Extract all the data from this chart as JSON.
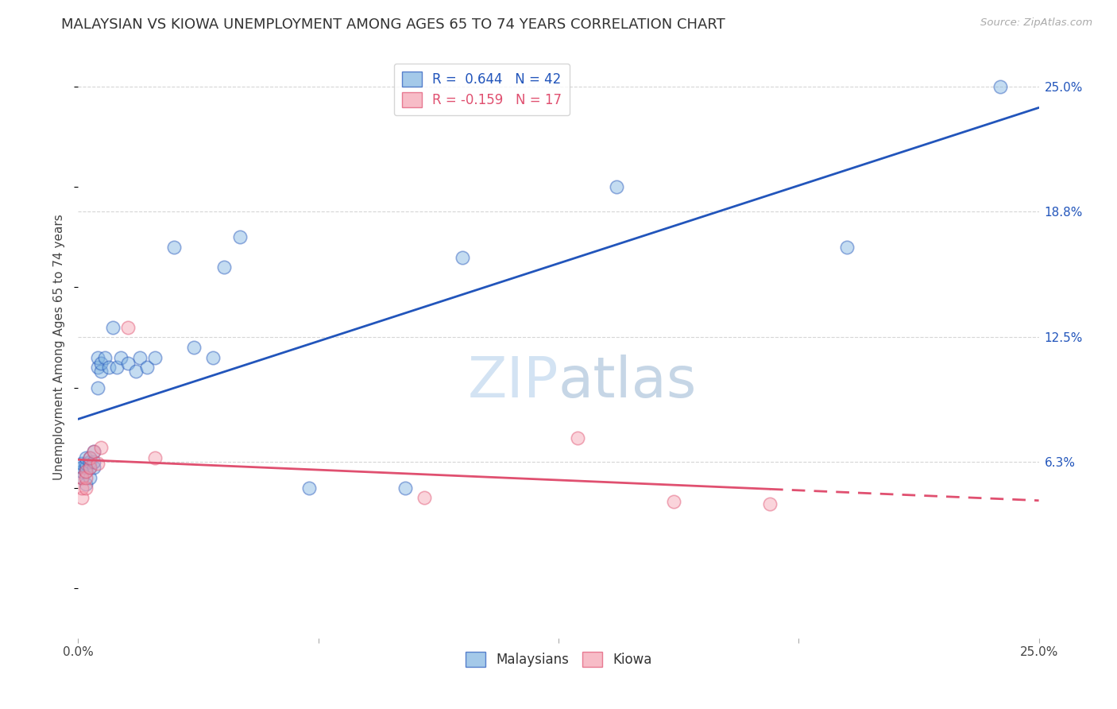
{
  "title": "MALAYSIAN VS KIOWA UNEMPLOYMENT AMONG AGES 65 TO 74 YEARS CORRELATION CHART",
  "source": "Source: ZipAtlas.com",
  "ylabel": "Unemployment Among Ages 65 to 74 years",
  "xlim": [
    0.0,
    0.25
  ],
  "ylim": [
    -0.025,
    0.265
  ],
  "ytick_labels": [
    "6.3%",
    "12.5%",
    "18.8%",
    "25.0%"
  ],
  "ytick_positions": [
    0.063,
    0.125,
    0.188,
    0.25
  ],
  "malaysian_color": "#7EB3E0",
  "kiowa_color": "#F5A0B0",
  "malaysian_R": 0.644,
  "malaysian_N": 42,
  "kiowa_R": -0.159,
  "kiowa_N": 17,
  "malaysian_x": [
    0.001,
    0.001,
    0.001,
    0.001,
    0.002,
    0.002,
    0.002,
    0.002,
    0.002,
    0.003,
    0.003,
    0.003,
    0.003,
    0.004,
    0.004,
    0.004,
    0.005,
    0.005,
    0.005,
    0.006,
    0.006,
    0.007,
    0.008,
    0.009,
    0.01,
    0.011,
    0.013,
    0.015,
    0.016,
    0.018,
    0.02,
    0.025,
    0.03,
    0.035,
    0.038,
    0.042,
    0.06,
    0.085,
    0.1,
    0.14,
    0.2,
    0.24
  ],
  "malaysian_y": [
    0.055,
    0.058,
    0.06,
    0.062,
    0.052,
    0.058,
    0.06,
    0.062,
    0.065,
    0.055,
    0.06,
    0.063,
    0.065,
    0.06,
    0.063,
    0.068,
    0.1,
    0.11,
    0.115,
    0.108,
    0.112,
    0.115,
    0.11,
    0.13,
    0.11,
    0.115,
    0.112,
    0.108,
    0.115,
    0.11,
    0.115,
    0.17,
    0.12,
    0.115,
    0.16,
    0.175,
    0.05,
    0.05,
    0.165,
    0.2,
    0.17,
    0.25
  ],
  "kiowa_x": [
    0.001,
    0.001,
    0.001,
    0.002,
    0.002,
    0.002,
    0.003,
    0.003,
    0.004,
    0.005,
    0.006,
    0.013,
    0.02,
    0.09,
    0.13,
    0.155,
    0.18
  ],
  "kiowa_y": [
    0.045,
    0.05,
    0.055,
    0.05,
    0.055,
    0.058,
    0.06,
    0.065,
    0.068,
    0.062,
    0.07,
    0.13,
    0.065,
    0.045,
    0.075,
    0.043,
    0.042
  ],
  "background_color": "#ffffff",
  "grid_color": "#cccccc",
  "title_fontsize": 13,
  "axis_label_fontsize": 11,
  "tick_fontsize": 11,
  "legend_fontsize": 12,
  "marker_size": 140,
  "marker_alpha": 0.45,
  "line_color_malaysian": "#2255BB",
  "line_color_kiowa": "#E05070",
  "line_width": 2.0,
  "watermark_color": "#C8DCF0",
  "watermark_alpha": 0.8
}
